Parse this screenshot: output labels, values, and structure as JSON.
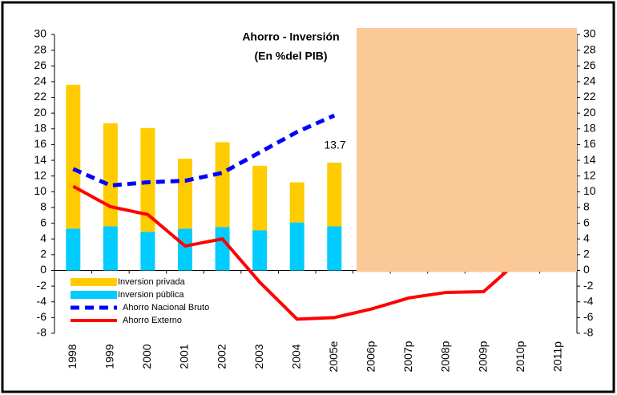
{
  "chart_data": {
    "type": "bar_line",
    "title": "Ahorro - Inversión",
    "subtitle": "(En %del PIB)",
    "categories": [
      "1998",
      "1999",
      "2000",
      "2001",
      "2002",
      "2003",
      "2004",
      "2005e",
      "2006p",
      "2007p",
      "2008p",
      "2009p",
      "2010p",
      "2011p"
    ],
    "series": [
      {
        "name": "Inversion pública",
        "kind": "bar",
        "color": "#00ccff",
        "values": [
          5.3,
          5.6,
          4.9,
          5.3,
          5.5,
          5.1,
          6.1,
          5.6,
          null,
          null,
          null,
          null,
          null,
          null
        ]
      },
      {
        "name": "Inversion privada",
        "kind": "bar",
        "color": "#ffcc00",
        "values": [
          18.3,
          13.1,
          13.2,
          8.9,
          10.8,
          8.2,
          5.1,
          8.1,
          null,
          null,
          null,
          null,
          null,
          null
        ]
      },
      {
        "name": "Ahorro Nacional Bruto",
        "kind": "dashed-line",
        "color": "#0000ff",
        "values": [
          12.9,
          10.8,
          11.2,
          11.4,
          12.4,
          15.0,
          17.6,
          19.7,
          null,
          null,
          null,
          null,
          null,
          null
        ]
      },
      {
        "name": "Ahorro Externo",
        "kind": "line",
        "color": "#ff0000",
        "values": [
          10.7,
          8.1,
          7.1,
          3.1,
          4.0,
          -1.5,
          -6.2,
          -6.0,
          -4.9,
          -3.5,
          -2.8,
          -2.7,
          1.5,
          null
        ]
      }
    ],
    "annotation": "13.7",
    "ylim": [
      -8,
      30
    ],
    "yticks": [
      -8,
      -6,
      -4,
      -2,
      0,
      2,
      4,
      6,
      8,
      10,
      12,
      14,
      16,
      18,
      20,
      22,
      24,
      26,
      28,
      30
    ],
    "y2lim": [
      -8,
      30
    ],
    "y2ticks": [
      -8,
      -6,
      -4,
      -2,
      0,
      2,
      4,
      6,
      8,
      10,
      12,
      14,
      16,
      18,
      20,
      22,
      24,
      26,
      28,
      30
    ],
    "legend_order": [
      1,
      0,
      2,
      3
    ]
  }
}
